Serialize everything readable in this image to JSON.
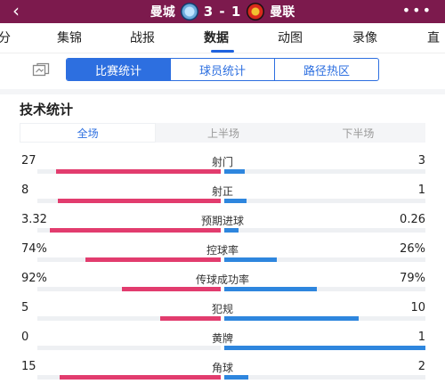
{
  "header": {
    "home_team": "曼城",
    "away_team": "曼联",
    "score": "3 - 1",
    "back_icon": "chevron-left-icon",
    "more_icon": "more-dots-icon",
    "colors": {
      "bar_bg": "#7c1a4d"
    }
  },
  "tabs": [
    {
      "label": "分"
    },
    {
      "label": "集锦"
    },
    {
      "label": "战报"
    },
    {
      "label": "数据"
    },
    {
      "label": "动图"
    },
    {
      "label": "录像"
    },
    {
      "label": "直"
    }
  ],
  "active_tab": "数据",
  "subtabs": {
    "items": [
      "比赛统计",
      "球员统计",
      "路径热区"
    ],
    "active": "比赛统计",
    "share_icon": "share-card-icon"
  },
  "section_title": "技术统计",
  "period_tabs": {
    "items": [
      "全场",
      "上半场",
      "下半场"
    ],
    "active": "全场"
  },
  "colors": {
    "accent": "#2d6fe0",
    "home_bar": "#e23c6e",
    "away_bar": "#2e86de"
  },
  "stats": [
    {
      "label": "射门",
      "home": "27",
      "away": "3",
      "home_share": 0.9,
      "away_share": 0.1
    },
    {
      "label": "射正",
      "home": "8",
      "away": "1",
      "home_share": 0.89,
      "away_share": 0.11
    },
    {
      "label": "预期进球",
      "home": "3.32",
      "away": "0.26",
      "home_share": 0.93,
      "away_share": 0.07
    },
    {
      "label": "控球率",
      "home": "74%",
      "away": "26%",
      "home_share": 0.74,
      "away_share": 0.26
    },
    {
      "label": "传球成功率",
      "home": "92%",
      "away": "79%",
      "home_share": 0.54,
      "away_share": 0.46
    },
    {
      "label": "犯规",
      "home": "5",
      "away": "10",
      "home_share": 0.33,
      "away_share": 0.67
    },
    {
      "label": "黄牌",
      "home": "0",
      "away": "1",
      "home_share": 0.0,
      "away_share": 1.0
    },
    {
      "label": "角球",
      "home": "15",
      "away": "2",
      "home_share": 0.88,
      "away_share": 0.12
    }
  ]
}
